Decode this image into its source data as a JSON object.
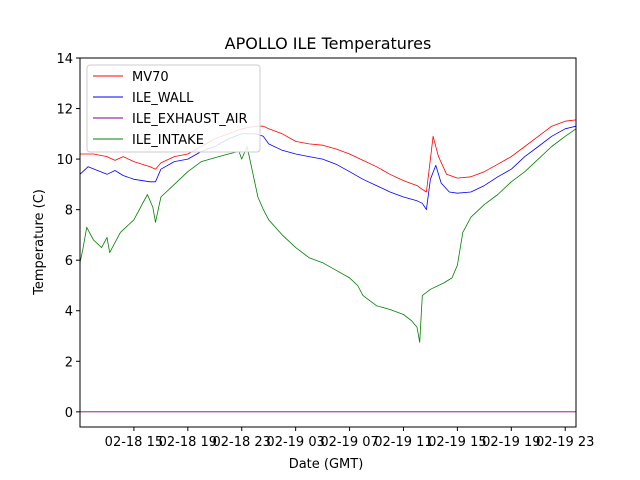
{
  "chart_data": {
    "type": "line",
    "title": "APOLLO ILE Temperatures",
    "xlabel": "Date (GMT)",
    "ylabel": "Temperature (C)",
    "ylim": [
      -0.6,
      14
    ],
    "xlim": [
      0,
      18.4
    ],
    "yticks": [
      0,
      2,
      4,
      6,
      8,
      10,
      12,
      14
    ],
    "xticks": [
      {
        "x": 2,
        "label": "02-18 15"
      },
      {
        "x": 4,
        "label": "02-18 19"
      },
      {
        "x": 6,
        "label": "02-18 23"
      },
      {
        "x": 8,
        "label": "02-19 03"
      },
      {
        "x": 10,
        "label": "02-19 07"
      },
      {
        "x": 12,
        "label": "02-19 11"
      },
      {
        "x": 14,
        "label": "02-19 15"
      },
      {
        "x": 16,
        "label": "02-19 19"
      },
      {
        "x": 18,
        "label": "02-19 23"
      }
    ],
    "x_units": "hours since 02-18 13:00 GMT",
    "legend_position": "top-left",
    "grid": false,
    "series": [
      {
        "name": "MV70",
        "color": "#ff0000",
        "x": [
          0,
          0.5,
          1,
          1.3,
          1.6,
          2,
          2.6,
          2.8,
          3,
          3.5,
          4,
          4.5,
          5,
          5.5,
          6,
          6.5,
          6.8,
          7,
          7.5,
          8,
          8.5,
          9,
          9.5,
          10,
          10.5,
          11,
          11.5,
          12,
          12.5,
          12.7,
          12.85,
          13.0,
          13.1,
          13.3,
          13.6,
          14,
          14.5,
          15,
          15.5,
          16,
          16.5,
          17,
          17.5,
          18,
          18.4
        ],
        "y": [
          10.2,
          10.2,
          10.1,
          9.95,
          10.1,
          9.9,
          9.7,
          9.6,
          9.85,
          10.1,
          10.2,
          10.5,
          10.8,
          11.0,
          11.2,
          11.3,
          11.3,
          11.2,
          11.0,
          10.7,
          10.6,
          10.55,
          10.4,
          10.2,
          9.95,
          9.7,
          9.4,
          9.15,
          8.95,
          8.8,
          8.7,
          10.0,
          10.9,
          10.1,
          9.4,
          9.25,
          9.3,
          9.5,
          9.8,
          10.1,
          10.5,
          10.9,
          11.3,
          11.5,
          11.55
        ]
      },
      {
        "name": "ILE_WALL",
        "color": "#0000ff",
        "x": [
          0,
          0.3,
          1,
          1.3,
          1.6,
          2,
          2.6,
          2.8,
          3,
          3.5,
          4,
          4.5,
          5,
          5.5,
          6,
          6.5,
          6.8,
          7,
          7.5,
          8,
          8.5,
          9,
          9.5,
          10,
          10.5,
          11,
          11.5,
          12,
          12.5,
          12.7,
          12.85,
          13.0,
          13.2,
          13.4,
          13.7,
          14,
          14.5,
          15,
          15.5,
          16,
          16.5,
          17,
          17.5,
          18,
          18.4
        ],
        "y": [
          9.4,
          9.7,
          9.4,
          9.55,
          9.35,
          9.2,
          9.1,
          9.1,
          9.6,
          9.9,
          10.0,
          10.3,
          10.5,
          10.8,
          11.0,
          11.0,
          10.9,
          10.6,
          10.35,
          10.2,
          10.1,
          10.0,
          9.8,
          9.5,
          9.2,
          8.95,
          8.7,
          8.5,
          8.35,
          8.25,
          8.0,
          9.2,
          9.75,
          9.05,
          8.7,
          8.65,
          8.7,
          8.95,
          9.3,
          9.6,
          10.1,
          10.5,
          10.9,
          11.2,
          11.3
        ]
      },
      {
        "name": "ILE_EXHAUST_AIR",
        "color": "#800080",
        "x": [
          0,
          18.4
        ],
        "y": [
          0,
          0
        ]
      },
      {
        "name": "ILE_INTAKE",
        "color": "#008000",
        "x": [
          0,
          0.1,
          0.25,
          0.5,
          0.8,
          1,
          1.1,
          1.5,
          2,
          2.5,
          2.7,
          2.8,
          3,
          3.5,
          4,
          4.5,
          5,
          5.5,
          5.9,
          6,
          6.2,
          6.4,
          6.6,
          6.8,
          7,
          7.5,
          8,
          8.5,
          9,
          9.5,
          10,
          10.3,
          10.5,
          11,
          11.5,
          12,
          12.3,
          12.5,
          12.6,
          12.7,
          13,
          13.5,
          13.8,
          14,
          14.2,
          14.5,
          15,
          15.5,
          16,
          16.5,
          17,
          17.5,
          18,
          18.4
        ],
        "y": [
          5.9,
          6.4,
          7.3,
          6.8,
          6.5,
          6.9,
          6.3,
          7.1,
          7.6,
          8.6,
          8.1,
          7.5,
          8.5,
          9.0,
          9.5,
          9.9,
          10.05,
          10.2,
          10.3,
          10.0,
          10.5,
          9.5,
          8.5,
          8.0,
          7.6,
          7.0,
          6.5,
          6.1,
          5.9,
          5.6,
          5.3,
          5.0,
          4.6,
          4.2,
          4.05,
          3.85,
          3.6,
          3.35,
          2.75,
          4.6,
          4.85,
          5.1,
          5.3,
          5.8,
          7.1,
          7.7,
          8.2,
          8.6,
          9.1,
          9.5,
          10.0,
          10.5,
          10.9,
          11.2
        ]
      }
    ]
  }
}
